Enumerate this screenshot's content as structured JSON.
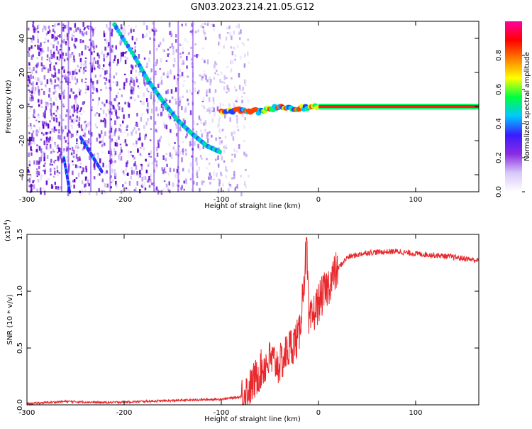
{
  "title": "GN03.2023.214.21.05.G12",
  "colors": {
    "snr_line": "#e8282c",
    "spectrum_ridge": "#ff1a1a",
    "scatter": "#7a1fe0"
  },
  "chart_data": [
    {
      "type": "heatmap",
      "xlabel": "Height of straight line (km)",
      "ylabel": "Frequency (Hz)",
      "xlim": [
        -300,
        165
      ],
      "ylim": [
        -50,
        50
      ],
      "xticks": [
        -300,
        -200,
        -100,
        0,
        100
      ],
      "yticks": [
        -40,
        -20,
        0,
        20,
        40
      ],
      "colorbar": {
        "label": "Normalized spectral amplitude",
        "range": [
          0,
          1
        ],
        "ticks": [
          "0.0",
          "0.2",
          "0.4",
          "0.6",
          "0.8"
        ],
        "colormap": [
          "#ffffff",
          "#d8c8f8",
          "#8a2be2",
          "#3a1cff",
          "#00c8ff",
          "#00ff40",
          "#ffff00",
          "#ff8000",
          "#ff0000",
          "#ff00a0"
        ]
      },
      "ridge": [
        {
          "x": -210,
          "y": 48
        },
        {
          "x": -190,
          "y": 30
        },
        {
          "x": -175,
          "y": 15
        },
        {
          "x": -160,
          "y": 3
        },
        {
          "x": -145,
          "y": -8
        },
        {
          "x": -130,
          "y": -16
        },
        {
          "x": -115,
          "y": -23
        },
        {
          "x": -100,
          "y": -27
        },
        {
          "x": -100,
          "y": -3
        },
        {
          "x": -80,
          "y": -2
        },
        {
          "x": -60,
          "y": -3
        },
        {
          "x": -40,
          "y": 0
        },
        {
          "x": -20,
          "y": -1
        },
        {
          "x": 0,
          "y": 0
        },
        {
          "x": 165,
          "y": 0
        }
      ]
    },
    {
      "type": "line",
      "xlabel": "Height of straight line (km)",
      "ylabel": "SNR (10 * v/v)",
      "ylabel_scale": "(x10",
      "ylabel_exponent": "4",
      "ylabel_scale_close": ")",
      "xlim": [
        -300,
        165
      ],
      "ylim": [
        0,
        1.5
      ],
      "xticks": [
        -300,
        -200,
        -100,
        0,
        100
      ],
      "yticks": [
        "0.0",
        "0.5",
        "1.0",
        "1.5"
      ],
      "series": [
        {
          "x": [
            -300,
            -260,
            -220,
            -180,
            -140,
            -100,
            -80,
            -70,
            -60,
            -50,
            -40,
            -30,
            -20,
            -12,
            -10,
            0,
            10,
            20,
            30,
            50,
            80,
            100,
            130,
            165
          ],
          "values": [
            0.01,
            0.03,
            0.02,
            0.03,
            0.04,
            0.05,
            0.07,
            0.15,
            0.3,
            0.4,
            0.35,
            0.5,
            0.6,
            1.4,
            0.7,
            0.9,
            1.05,
            1.2,
            1.3,
            1.34,
            1.35,
            1.33,
            1.31,
            1.27
          ]
        }
      ]
    }
  ]
}
